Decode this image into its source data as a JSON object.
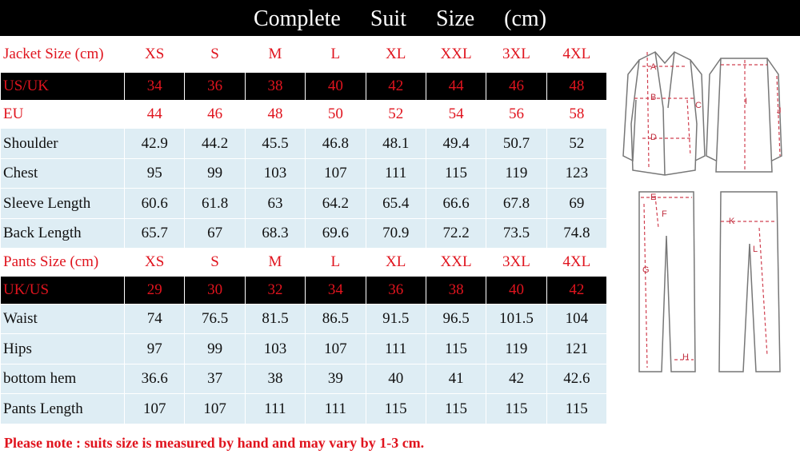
{
  "title": "Complete Suit Size (cm)",
  "table": {
    "rows": [
      [
        "Jacket Size (cm)",
        "XS",
        "S",
        "M",
        "L",
        "XL",
        "XXL",
        "3XL",
        "4XL"
      ],
      [
        "US/UK",
        34,
        36,
        38,
        40,
        42,
        44,
        46,
        48
      ],
      [
        "EU",
        44,
        46,
        48,
        50,
        52,
        54,
        56,
        58
      ],
      [
        "Shoulder",
        42.9,
        44.2,
        45.5,
        46.8,
        48.1,
        49.4,
        50.7,
        52
      ],
      [
        "Chest",
        95,
        99,
        103,
        107,
        111,
        115,
        119,
        123
      ],
      [
        "Sleeve Length",
        60.6,
        61.8,
        63,
        64.2,
        65.4,
        66.6,
        67.8,
        69
      ],
      [
        "Back Length",
        65.7,
        67,
        68.3,
        69.6,
        70.9,
        72.2,
        73.5,
        74.8
      ],
      [
        "Pants Size (cm)",
        "XS",
        "S",
        "M",
        "L",
        "XL",
        "XXL",
        "3XL",
        "4XL"
      ],
      [
        "UK/US",
        29,
        30,
        32,
        34,
        36,
        38,
        40,
        42
      ],
      [
        "Waist",
        74,
        76.5,
        81.5,
        86.5,
        91.5,
        96.5,
        101.5,
        104
      ],
      [
        "Hips",
        97,
        99,
        103,
        107,
        111,
        115,
        119,
        121
      ],
      [
        "bottom hem",
        36.6,
        37,
        38,
        39,
        40,
        41,
        42,
        42.6
      ],
      [
        "Pants Length",
        107,
        107,
        111,
        111,
        115,
        115,
        115,
        115
      ]
    ]
  },
  "diagram_labels": [
    "A",
    "B",
    "C",
    "D",
    "I",
    "J",
    "E",
    "F",
    "G",
    "H",
    "K",
    "L"
  ],
  "note": "Please note : suits size is measured by hand and may vary by 1-3 cm."
}
